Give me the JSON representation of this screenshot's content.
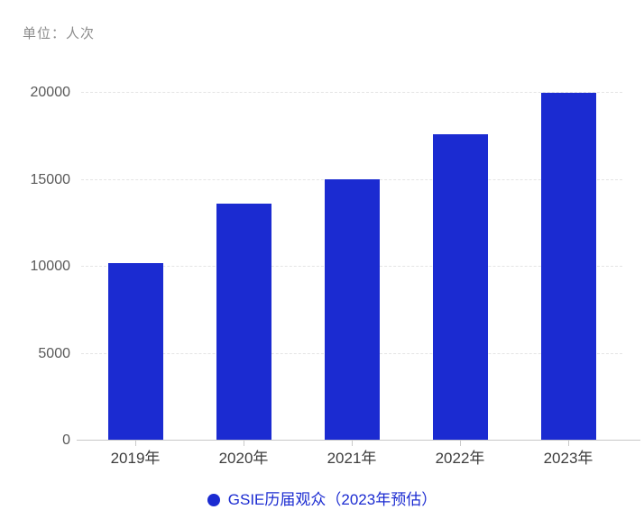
{
  "chart_data": {
    "type": "bar",
    "unit_label": "单位：人次",
    "categories": [
      "2019年",
      "2020年",
      "2021年",
      "2022年",
      "2023年"
    ],
    "values": [
      10200,
      13650,
      15050,
      17600,
      20000
    ],
    "yticks": [
      0,
      5000,
      10000,
      15000,
      20000
    ],
    "ylim": [
      0,
      20000
    ],
    "grid": "horizontal-dashed",
    "legend": {
      "position": "bottom",
      "marker": "circle",
      "label": "GSIE历届观众（2023年预估）"
    },
    "colors": {
      "bar": "#1b2bd1",
      "legend_text": "#1b2bd1",
      "axis_line": "#c9c9c9",
      "gridline": "#e4e4e4",
      "y_label": "#595959",
      "x_label": "#3d3d3d",
      "unit_label": "#8c8c8c",
      "background": "#ffffff"
    }
  }
}
